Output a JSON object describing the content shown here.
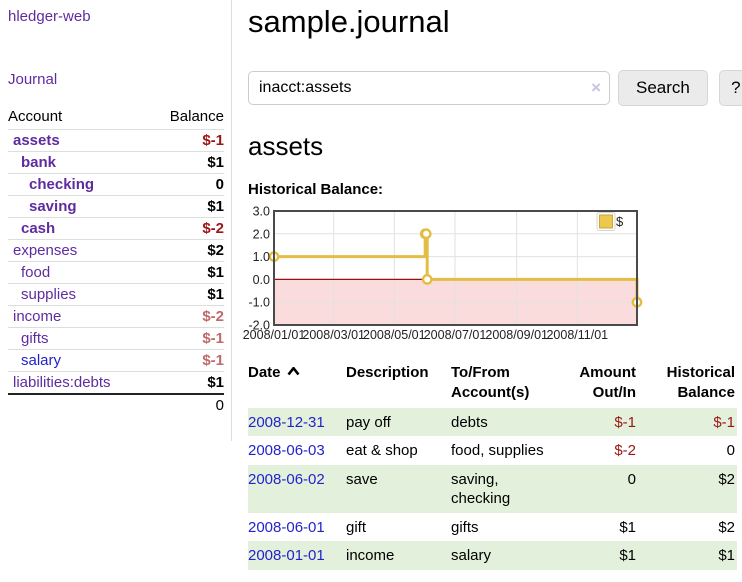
{
  "app": {
    "brand": "hledger-web",
    "nav_journal": "Journal"
  },
  "colors": {
    "link_purple": "#5f2ca0",
    "link_blue": "#2323cc",
    "negative_strong": "#9c1515",
    "negative_soft": "#c06a6a",
    "row_green": "#e3f1dc",
    "chart_gold": "#e4bd45",
    "chart_negative_fill": "#fadcdc",
    "chart_zero_line": "#991111"
  },
  "sidebar": {
    "header": {
      "account": "Account",
      "balance": "Balance"
    },
    "accounts": [
      {
        "name": "assets",
        "indent": 0,
        "bold": true,
        "balance": "$-1",
        "neg": "strong",
        "link": "visited"
      },
      {
        "name": "bank",
        "indent": 1,
        "bold": true,
        "balance": "$1",
        "neg": "",
        "link": "visited"
      },
      {
        "name": "checking",
        "indent": 2,
        "bold": true,
        "balance": "0",
        "neg": "",
        "link": "visited"
      },
      {
        "name": "saving",
        "indent": 2,
        "bold": true,
        "balance": "$1",
        "neg": "",
        "link": "visited"
      },
      {
        "name": "cash",
        "indent": 1,
        "bold": true,
        "balance": "$-2",
        "neg": "strong",
        "link": "visited"
      },
      {
        "name": "expenses",
        "indent": 0,
        "bold": false,
        "balance": "$2",
        "neg": "",
        "link": "visited"
      },
      {
        "name": "food",
        "indent": 1,
        "bold": false,
        "balance": "$1",
        "neg": "",
        "link": "visited"
      },
      {
        "name": "supplies",
        "indent": 1,
        "bold": false,
        "balance": "$1",
        "neg": "",
        "link": "visited"
      },
      {
        "name": "income",
        "indent": 0,
        "bold": false,
        "balance": "$-2",
        "neg": "soft",
        "link": "visited"
      },
      {
        "name": "gifts",
        "indent": 1,
        "bold": false,
        "balance": "$-1",
        "neg": "soft",
        "link": "visited"
      },
      {
        "name": "salary",
        "indent": 1,
        "bold": false,
        "balance": "$-1",
        "neg": "soft",
        "link": "new"
      },
      {
        "name": "liabilities:debts",
        "indent": 0,
        "bold": false,
        "balance": "$1",
        "neg": "",
        "link": "visited"
      }
    ],
    "total": "0"
  },
  "main": {
    "title": "sample.journal",
    "search": {
      "value": "inacct:assets",
      "clear_icon": "×",
      "button": "Search",
      "help": "?"
    },
    "account_heading": "assets",
    "chart_label": "Historical Balance:"
  },
  "chart_data": {
    "type": "line",
    "step": true,
    "title": "Historical Balance:",
    "legend": [
      "$"
    ],
    "legend_position": "top-right",
    "x": [
      "2008-01-01",
      "2008-06-01",
      "2008-06-02",
      "2008-06-03",
      "2008-12-31"
    ],
    "y": [
      1,
      2,
      2,
      0,
      -1
    ],
    "x_ticks": [
      "2008/01/01",
      "2008/03/01",
      "2008/05/01",
      "2008/07/01",
      "2008/09/01",
      "2008/11/01"
    ],
    "y_ticks": [
      "3.0",
      "2.0",
      "1.0",
      "0.0",
      "-1.0",
      "-2.0"
    ],
    "ylim": [
      -2,
      3
    ],
    "xlim": [
      "2008-01-01",
      "2008-12-31"
    ],
    "grid": true,
    "negative_region_shaded": true
  },
  "register": {
    "headers": [
      {
        "label": "Date",
        "align": "left",
        "sorted": true
      },
      {
        "label": "Description",
        "align": "left",
        "sorted": false
      },
      {
        "label": "To/From Account(s)",
        "align": "left",
        "sorted": false
      },
      {
        "label": "Amount Out/In",
        "align": "right",
        "sorted": false
      },
      {
        "label": "Historical Balance",
        "align": "right",
        "sorted": false
      }
    ],
    "rows": [
      {
        "date": "2008-12-31",
        "description": "pay off",
        "accounts": "debts",
        "amount": "$-1",
        "amount_neg": true,
        "balance": "$-1",
        "balance_neg": true,
        "green": true
      },
      {
        "date": "2008-06-03",
        "description": "eat & shop",
        "accounts": "food, supplies",
        "amount": "$-2",
        "amount_neg": true,
        "balance": "0",
        "balance_neg": false,
        "green": false
      },
      {
        "date": "2008-06-02",
        "description": "save",
        "accounts": "saving,\nchecking",
        "amount": "0",
        "amount_neg": false,
        "balance": "$2",
        "balance_neg": false,
        "green": true
      },
      {
        "date": "2008-06-01",
        "description": "gift",
        "accounts": "gifts",
        "amount": "$1",
        "amount_neg": false,
        "balance": "$2",
        "balance_neg": false,
        "green": false
      },
      {
        "date": "2008-01-01",
        "description": "income",
        "accounts": "salary",
        "amount": "$1",
        "amount_neg": false,
        "balance": "$1",
        "balance_neg": false,
        "green": true
      }
    ]
  }
}
